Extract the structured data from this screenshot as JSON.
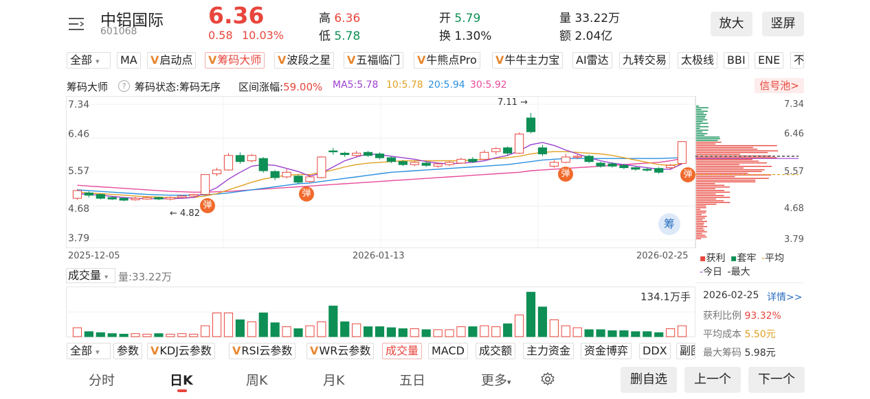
{
  "header": {
    "menu_icon": "menu-icon",
    "stock_name": "中铝国际",
    "stock_code": "601068",
    "price": "6.36",
    "change": "0.58",
    "change_pct": "10.03%",
    "high_label": "高",
    "high_value": "6.36",
    "low_label": "低",
    "low_value": "5.78",
    "open_label": "开",
    "open_value": "5.79",
    "turnover_label": "换",
    "turnover_value": "1.30%",
    "volume_label": "量",
    "volume_value": "33.22万",
    "amount_label": "额",
    "amount_value": "2.04亿",
    "zoom_button": "放大",
    "portrait_button": "竖屏"
  },
  "indicator_tabs": {
    "all": "全部",
    "items": [
      "MA",
      "启动点",
      "筹码大师",
      "波段之星",
      "五福临门",
      "牛熊点Pro",
      "牛牛主力宝",
      "AI雷达",
      "九转交易",
      "太极线",
      "BBI",
      "ENE",
      "不"
    ]
  },
  "indicator_bar": {
    "name": "筹码大师",
    "status": "筹码状态:筹码无序",
    "range_label": "区间涨幅:",
    "range_value": "59.00%",
    "ma5": "MA5:5.78",
    "ma10": "10:5.78",
    "ma20": "20:5.94",
    "ma30": "30:5.92",
    "signal_pool": "信号池>"
  },
  "colors": {
    "up": "#e8453c",
    "down": "#0e8f55",
    "ma5": "#9b3fcf",
    "ma10": "#e0a020",
    "ma20": "#2a8fe0",
    "ma30": "#e84a9a"
  },
  "price_axis": [
    "7.34",
    "6.46",
    "5.57",
    "4.68",
    "3.79"
  ],
  "date_axis": [
    "2025-12-05",
    "2026-01-13",
    "2026-02-25"
  ],
  "annotations": {
    "high_mark": "7.11",
    "low_mark": "4.82",
    "bounce": "弹",
    "chip_badge": "筹"
  },
  "chip_legend": {
    "profit": "获利",
    "trapped": "套牢",
    "avg": "平均",
    "today": "今日",
    "max": "最大"
  },
  "chip_info": {
    "date": "2026-02-25",
    "detail_link": "详情>>",
    "profit_ratio_label": "获利比例",
    "profit_ratio": "93.32%",
    "avg_cost_label": "平均成本",
    "avg_cost": "5.50元",
    "max_chip_label": "最大筹码",
    "max_chip": "5.98元"
  },
  "volume_bar": {
    "select": "成交量",
    "value": "量:33.22万",
    "max_label": "134.1万手"
  },
  "bottom_tabs": {
    "all": "全部",
    "items": [
      "参数",
      "KDJ云参数",
      "RSI云参数",
      "WR云参数",
      "成交量",
      "MACD",
      "成交额",
      "主力资金",
      "资金博弈",
      "DDX",
      "副图"
    ]
  },
  "period_tabs": [
    "分时",
    "日K",
    "周K",
    "月K",
    "五日",
    "更多"
  ],
  "actions": {
    "remove": "删自选",
    "prev": "上一个",
    "next": "下一个"
  },
  "chart_data": {
    "type": "candlestick",
    "ylim": [
      3.79,
      7.34
    ],
    "candles": [
      {
        "o": 5.08,
        "c": 4.88,
        "h": 5.12,
        "l": 4.84,
        "up": true
      },
      {
        "o": 5.02,
        "c": 4.96,
        "h": 5.06,
        "l": 4.9,
        "up": false
      },
      {
        "o": 4.98,
        "c": 4.88,
        "h": 5.0,
        "l": 4.85,
        "up": false
      },
      {
        "o": 4.9,
        "c": 4.86,
        "h": 4.93,
        "l": 4.83,
        "up": false
      },
      {
        "o": 4.88,
        "c": 4.83,
        "h": 4.9,
        "l": 4.8,
        "up": false
      },
      {
        "o": 4.84,
        "c": 4.88,
        "h": 4.92,
        "l": 4.82,
        "up": true
      },
      {
        "o": 4.86,
        "c": 4.9,
        "h": 4.93,
        "l": 4.84,
        "up": true
      },
      {
        "o": 4.9,
        "c": 4.86,
        "h": 4.92,
        "l": 4.83,
        "up": false
      },
      {
        "o": 4.86,
        "c": 4.9,
        "h": 4.93,
        "l": 4.82,
        "up": true
      },
      {
        "o": 4.9,
        "c": 4.94,
        "h": 4.97,
        "l": 4.88,
        "up": true
      },
      {
        "o": 4.94,
        "c": 4.98,
        "h": 5.0,
        "l": 4.9,
        "up": true
      },
      {
        "o": 4.98,
        "c": 5.5,
        "h": 5.5,
        "l": 4.95,
        "up": true
      },
      {
        "o": 5.52,
        "c": 5.62,
        "h": 5.68,
        "l": 5.46,
        "up": true
      },
      {
        "o": 5.62,
        "c": 6.0,
        "h": 6.06,
        "l": 5.6,
        "up": true
      },
      {
        "o": 6.0,
        "c": 5.84,
        "h": 6.08,
        "l": 5.78,
        "up": false
      },
      {
        "o": 5.86,
        "c": 6.0,
        "h": 6.04,
        "l": 5.82,
        "up": true
      },
      {
        "o": 5.92,
        "c": 5.6,
        "h": 5.96,
        "l": 5.55,
        "up": false
      },
      {
        "o": 5.58,
        "c": 5.42,
        "h": 5.62,
        "l": 5.35,
        "up": false
      },
      {
        "o": 5.44,
        "c": 5.56,
        "h": 5.64,
        "l": 5.4,
        "up": true
      },
      {
        "o": 5.46,
        "c": 5.3,
        "h": 5.5,
        "l": 5.26,
        "up": false
      },
      {
        "o": 5.32,
        "c": 5.44,
        "h": 5.5,
        "l": 5.28,
        "up": true
      },
      {
        "o": 5.42,
        "c": 5.96,
        "h": 5.98,
        "l": 5.4,
        "up": true
      },
      {
        "o": 6.12,
        "c": 6.1,
        "h": 6.2,
        "l": 6.02,
        "up": false
      },
      {
        "o": 6.06,
        "c": 6.02,
        "h": 6.1,
        "l": 5.96,
        "up": false
      },
      {
        "o": 6.0,
        "c": 6.06,
        "h": 6.12,
        "l": 5.96,
        "up": true
      },
      {
        "o": 6.08,
        "c": 6.0,
        "h": 6.12,
        "l": 5.96,
        "up": false
      },
      {
        "o": 6.04,
        "c": 5.94,
        "h": 6.08,
        "l": 5.9,
        "up": false
      },
      {
        "o": 5.94,
        "c": 5.84,
        "h": 5.98,
        "l": 5.8,
        "up": false
      },
      {
        "o": 5.84,
        "c": 5.76,
        "h": 5.88,
        "l": 5.72,
        "up": false
      },
      {
        "o": 5.76,
        "c": 5.82,
        "h": 5.86,
        "l": 5.72,
        "up": true
      },
      {
        "o": 5.8,
        "c": 5.74,
        "h": 5.84,
        "l": 5.7,
        "up": false
      },
      {
        "o": 5.72,
        "c": 5.78,
        "h": 5.82,
        "l": 5.68,
        "up": true
      },
      {
        "o": 5.76,
        "c": 5.82,
        "h": 5.86,
        "l": 5.72,
        "up": true
      },
      {
        "o": 5.8,
        "c": 5.9,
        "h": 5.94,
        "l": 5.78,
        "up": true
      },
      {
        "o": 5.9,
        "c": 5.84,
        "h": 5.96,
        "l": 5.8,
        "up": false
      },
      {
        "o": 5.9,
        "c": 6.08,
        "h": 6.14,
        "l": 5.88,
        "up": true
      },
      {
        "o": 6.1,
        "c": 6.18,
        "h": 6.22,
        "l": 6.02,
        "up": true
      },
      {
        "o": 6.2,
        "c": 6.06,
        "h": 6.24,
        "l": 6.0,
        "up": false
      },
      {
        "o": 6.06,
        "c": 6.56,
        "h": 6.6,
        "l": 6.04,
        "up": true
      },
      {
        "o": 6.62,
        "c": 6.98,
        "h": 7.11,
        "l": 6.58,
        "up": false
      },
      {
        "o": 6.2,
        "c": 6.04,
        "h": 6.28,
        "l": 5.98,
        "up": false
      },
      {
        "o": 5.72,
        "c": 5.82,
        "h": 5.88,
        "l": 5.68,
        "up": true
      },
      {
        "o": 5.82,
        "c": 5.96,
        "h": 6.04,
        "l": 5.8,
        "up": true
      },
      {
        "o": 5.96,
        "c": 5.98,
        "h": 6.02,
        "l": 5.9,
        "up": true
      },
      {
        "o": 5.98,
        "c": 5.84,
        "h": 6.02,
        "l": 5.8,
        "up": false
      },
      {
        "o": 5.8,
        "c": 5.72,
        "h": 5.84,
        "l": 5.68,
        "up": false
      },
      {
        "o": 5.78,
        "c": 5.72,
        "h": 5.82,
        "l": 5.68,
        "up": false
      },
      {
        "o": 5.74,
        "c": 5.68,
        "h": 5.78,
        "l": 5.64,
        "up": false
      },
      {
        "o": 5.68,
        "c": 5.64,
        "h": 5.72,
        "l": 5.6,
        "up": false
      },
      {
        "o": 5.64,
        "c": 5.62,
        "h": 5.68,
        "l": 5.58,
        "up": false
      },
      {
        "o": 5.66,
        "c": 5.56,
        "h": 5.7,
        "l": 5.52,
        "up": false
      },
      {
        "o": 5.68,
        "c": 5.74,
        "h": 5.78,
        "l": 5.62,
        "up": true
      },
      {
        "o": 5.79,
        "c": 6.36,
        "h": 6.36,
        "l": 5.78,
        "up": true
      }
    ],
    "ma5": [
      5.0,
      4.98,
      4.96,
      4.93,
      4.9,
      4.88,
      4.87,
      4.87,
      4.87,
      4.88,
      4.9,
      5.02,
      5.16,
      5.38,
      5.56,
      5.72,
      5.76,
      5.74,
      5.66,
      5.58,
      5.46,
      5.54,
      5.7,
      5.86,
      5.96,
      6.04,
      6.02,
      5.98,
      5.94,
      5.9,
      5.84,
      5.8,
      5.78,
      5.8,
      5.82,
      5.86,
      5.94,
      6.0,
      6.12,
      6.28,
      6.34,
      6.26,
      6.14,
      6.04,
      5.94,
      5.86,
      5.8,
      5.76,
      5.72,
      5.68,
      5.64,
      5.64,
      5.78
    ],
    "ma10": [
      5.04,
      5.02,
      5.0,
      4.98,
      4.96,
      4.94,
      4.92,
      4.91,
      4.9,
      4.9,
      4.9,
      4.94,
      5.0,
      5.1,
      5.2,
      5.3,
      5.38,
      5.44,
      5.48,
      5.5,
      5.5,
      5.56,
      5.62,
      5.7,
      5.76,
      5.8,
      5.82,
      5.84,
      5.86,
      5.86,
      5.86,
      5.86,
      5.86,
      5.86,
      5.88,
      5.9,
      5.92,
      5.94,
      5.98,
      6.04,
      6.08,
      6.1,
      6.1,
      6.08,
      6.06,
      6.04,
      6.0,
      5.94,
      5.88,
      5.82,
      5.76,
      5.74,
      5.78
    ],
    "ma20": [
      5.1,
      5.08,
      5.06,
      5.04,
      5.02,
      5.0,
      4.98,
      4.97,
      4.96,
      4.96,
      4.96,
      4.97,
      4.99,
      5.02,
      5.06,
      5.1,
      5.14,
      5.18,
      5.22,
      5.26,
      5.28,
      5.32,
      5.36,
      5.4,
      5.44,
      5.48,
      5.52,
      5.56,
      5.58,
      5.6,
      5.62,
      5.64,
      5.66,
      5.68,
      5.7,
      5.72,
      5.74,
      5.76,
      5.8,
      5.84,
      5.88,
      5.9,
      5.92,
      5.92,
      5.92,
      5.92,
      5.92,
      5.92,
      5.92,
      5.92,
      5.92,
      5.93,
      5.94
    ],
    "ma30": [
      5.22,
      5.2,
      5.18,
      5.16,
      5.14,
      5.12,
      5.1,
      5.08,
      5.06,
      5.05,
      5.04,
      5.04,
      5.05,
      5.06,
      5.08,
      5.1,
      5.12,
      5.14,
      5.16,
      5.18,
      5.2,
      5.22,
      5.24,
      5.26,
      5.28,
      5.3,
      5.32,
      5.34,
      5.36,
      5.38,
      5.4,
      5.42,
      5.44,
      5.46,
      5.48,
      5.5,
      5.52,
      5.54,
      5.56,
      5.6,
      5.62,
      5.64,
      5.66,
      5.68,
      5.7,
      5.72,
      5.74,
      5.76,
      5.78,
      5.8,
      5.82,
      5.86,
      5.92
    ],
    "volume": [
      0.18,
      0.1,
      0.08,
      0.06,
      0.05,
      0.06,
      0.05,
      0.06,
      0.05,
      0.06,
      0.05,
      0.22,
      0.48,
      0.48,
      0.34,
      0.3,
      0.48,
      0.28,
      0.2,
      0.16,
      0.22,
      0.3,
      0.62,
      0.3,
      0.26,
      0.2,
      0.2,
      0.18,
      0.16,
      0.16,
      0.14,
      0.14,
      0.14,
      0.2,
      0.2,
      0.22,
      0.2,
      0.26,
      0.44,
      0.9,
      0.6,
      0.34,
      0.22,
      0.18,
      0.14,
      0.14,
      0.12,
      0.12,
      0.1,
      0.1,
      0.08,
      0.16,
      0.22
    ],
    "volume_max_label": "134.1万手"
  }
}
